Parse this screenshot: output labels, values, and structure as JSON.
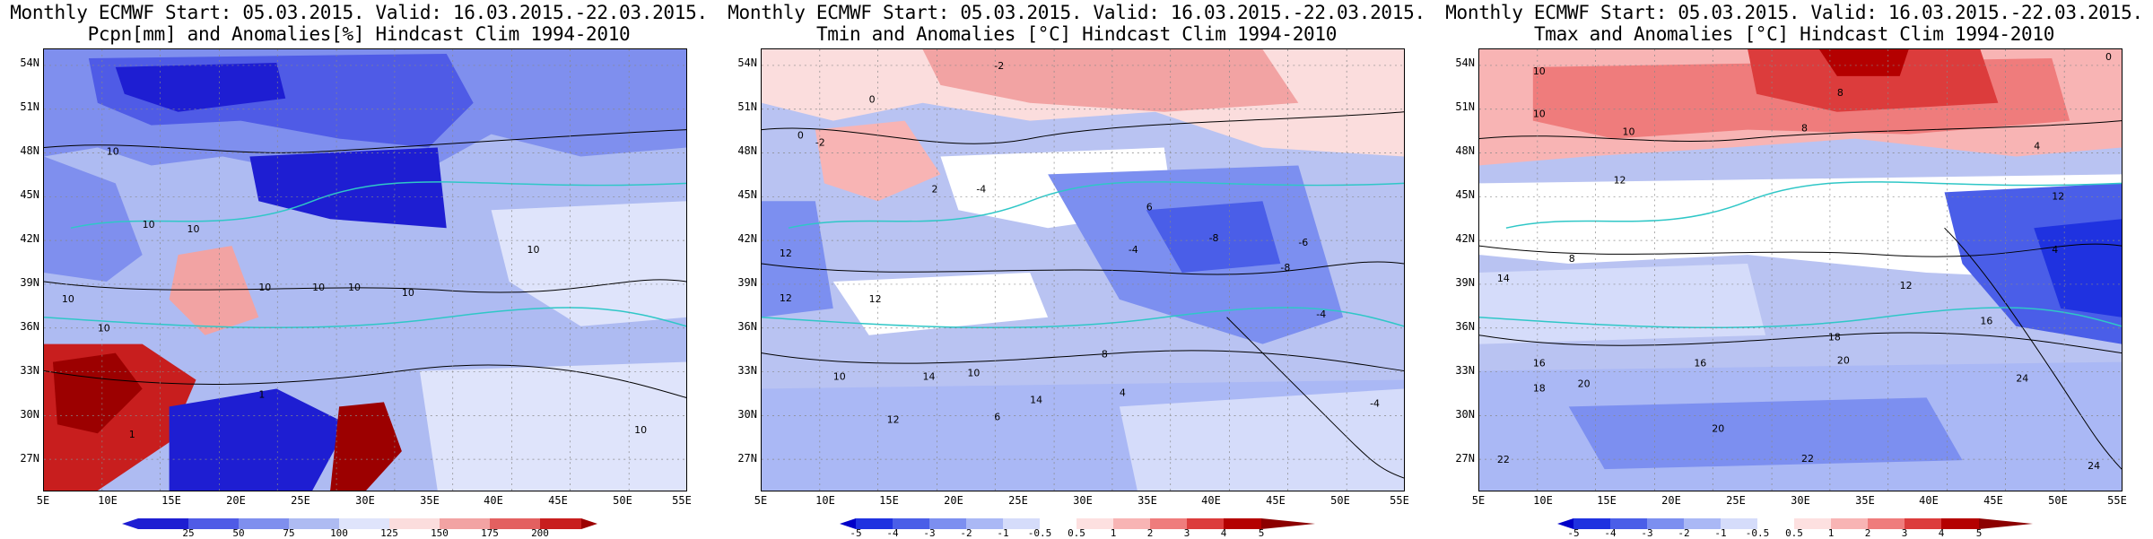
{
  "panels": [
    {
      "title_line1": "Monthly ECMWF Start: 05.03.2015. Valid: 16.03.2015.-22.03.2015.",
      "title_line2": "Pcpn[mm] and Anomalies[%] Hindcast Clim 1994-2010",
      "colorbar": [
        "25",
        "50",
        "75",
        "100",
        "125",
        "150",
        "175",
        "200"
      ],
      "contour_labels": [
        "10",
        "10",
        "10",
        "10",
        "10",
        "10",
        "10",
        "10",
        "10",
        "10",
        "1",
        "1",
        "10"
      ],
      "base": "#aebbf2"
    },
    {
      "title_line1": "Monthly ECMWF Start: 05.03.2015. Valid: 16.03.2015.-22.03.2015.",
      "title_line2": "Tmin and Anomalies [°C] Hindcast Clim 1994-2010",
      "colorbar": [
        "-5",
        "-4",
        "-3",
        "-2",
        "-1",
        "-0.5",
        "0.5",
        "1",
        "2",
        "3",
        "4",
        "5"
      ],
      "contour_labels": [
        "-2",
        "0",
        "0",
        "-2",
        "2",
        "-4",
        "6",
        "-8",
        "-6",
        "-4",
        "12",
        "12",
        "12",
        "14",
        "10",
        "10",
        "12",
        "14",
        "6",
        "8",
        "4",
        "-4",
        "-8",
        "-4"
      ],
      "base": "#b9c3f2"
    },
    {
      "title_line1": "Monthly ECMWF Start: 05.03.2015. Valid: 16.03.2015.-22.03.2015.",
      "title_line2": "Tmax and Anomalies [°C] Hindcast Clim 1994-2010",
      "colorbar": [
        "-5",
        "-4",
        "-3",
        "-2",
        "-1",
        "-0.5",
        "0.5",
        "1",
        "2",
        "3",
        "4",
        "5"
      ],
      "contour_labels": [
        "0",
        "10",
        "10",
        "10",
        "8",
        "8",
        "4",
        "12",
        "12",
        "8",
        "4",
        "14",
        "16",
        "18",
        "20",
        "16",
        "18",
        "20",
        "22",
        "20",
        "22",
        "24",
        "12",
        "16",
        "24"
      ],
      "base": "#b9c3f2"
    }
  ],
  "axes": {
    "lat": [
      "54N",
      "51N",
      "48N",
      "45N",
      "42N",
      "39N",
      "36N",
      "33N",
      "30N",
      "27N"
    ],
    "lon": [
      "5E",
      "10E",
      "15E",
      "20E",
      "25E",
      "30E",
      "35E",
      "40E",
      "45E",
      "50E",
      "55E"
    ]
  },
  "colors": {
    "pcpn_scale": [
      "#9c0000",
      "#1e1ed2",
      "#4f5be6",
      "#7f8fee",
      "#aebbf2",
      "#dfe4fb",
      "#fbdddd",
      "#f2a3a3",
      "#e36060",
      "#c81e1e",
      "#9c0000"
    ],
    "temp_scale": [
      "#0000c8",
      "#1f32e0",
      "#4a5ee8",
      "#7c8ff0",
      "#aab8f5",
      "#d5dcfa",
      "#ffffff",
      "#fde0e0",
      "#f8b4b4",
      "#ef7c7c",
      "#dc3c3c",
      "#b40000",
      "#8c0000"
    ],
    "coast": "#2fc7c7",
    "contour": "#000000"
  }
}
